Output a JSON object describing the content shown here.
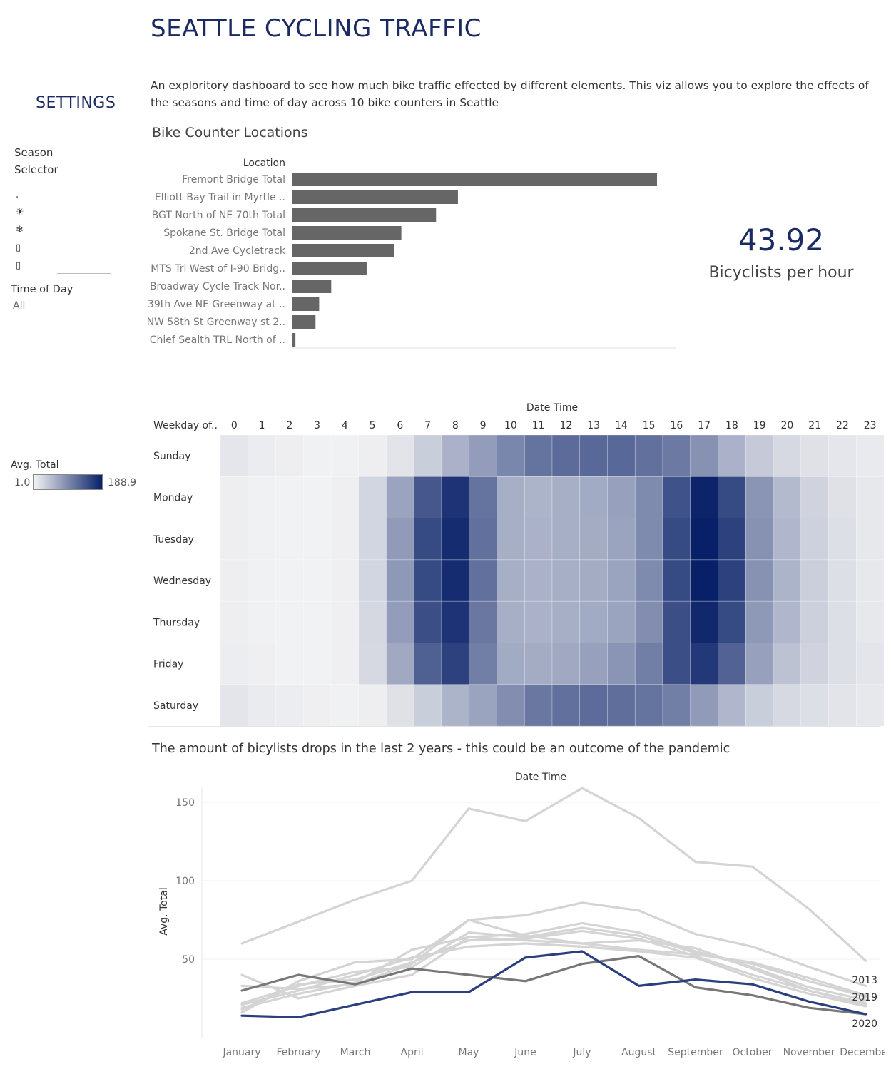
{
  "header": {
    "title": "SEATTLE CYCLING TRAFFIC",
    "subtitle": "An exploritory dashboard to see how much bike traffic effected by different elements. This viz allows you to explore the effects of the seasons and time of day across 10 bike counters in Seattle"
  },
  "settings": {
    "title": "SETTINGS",
    "season_label": "Season Selector",
    "season_options": [
      ".",
      "☀",
      "❄",
      "▯",
      "▯"
    ],
    "time_of_day_label": "Time of Day",
    "time_of_day_value": "All"
  },
  "kpi": {
    "value": "43.92",
    "label": "Bicyclists per hour"
  },
  "heatmap_legend": {
    "label": "Avg. Total",
    "min": "1.0",
    "max": "188.9",
    "color_low": "#f4f4f4",
    "color_high": "#082068"
  },
  "line_section_title": "The amount of bicylists drops in the last 2 years - this could be an outcome of the pandemic",
  "chart_data": [
    {
      "type": "bar",
      "title": "Bike Counter Locations",
      "ylabel": "Location",
      "categories": [
        "Fremont Bridge Total",
        "Elliott Bay Trail in Myrtle ..",
        "BGT North of NE 70th Total",
        "Spokane St. Bridge Total",
        "2nd Ave Cycletrack",
        "MTS Trl West of I-90 Bridg..",
        "Broadway Cycle Track Nor..",
        "39th Ave NE Greenway at ..",
        "NW 58th St Greenway st 2..",
        "Chief Sealth TRL North of .."
      ],
      "values": [
        100,
        45.5,
        39.5,
        30,
        28,
        20.5,
        10.8,
        7.5,
        6.5,
        1
      ],
      "color": "#666666"
    },
    {
      "type": "heatmap",
      "xlabel": "Date Time",
      "ylabel": "Weekday of..",
      "x": [
        "0",
        "1",
        "2",
        "3",
        "4",
        "5",
        "6",
        "7",
        "8",
        "9",
        "10",
        "11",
        "12",
        "13",
        "14",
        "15",
        "16",
        "17",
        "18",
        "19",
        "20",
        "21",
        "22",
        "23"
      ],
      "y": [
        "Sunday",
        "Monday",
        "Tuesday",
        "Wednesday",
        "Thursday",
        "Friday",
        "Saturday"
      ],
      "range": [
        1.0,
        188.9
      ],
      "values": [
        [
          13,
          8,
          6,
          4,
          4,
          6,
          15,
          35,
          60,
          78,
          98,
          115,
          122,
          125,
          125,
          118,
          110,
          88,
          60,
          38,
          25,
          18,
          13,
          10
        ],
        [
          6,
          4,
          3,
          3,
          5,
          28,
          72,
          140,
          172,
          115,
          62,
          58,
          62,
          66,
          75,
          95,
          145,
          185,
          152,
          85,
          52,
          30,
          18,
          12
        ],
        [
          6,
          4,
          3,
          3,
          5,
          28,
          80,
          152,
          178,
          118,
          62,
          60,
          62,
          65,
          72,
          95,
          152,
          189,
          160,
          88,
          55,
          32,
          20,
          12
        ],
        [
          6,
          4,
          3,
          3,
          5,
          28,
          82,
          152,
          178,
          118,
          62,
          60,
          62,
          65,
          72,
          95,
          152,
          189,
          160,
          88,
          58,
          34,
          20,
          12
        ],
        [
          6,
          4,
          3,
          3,
          5,
          26,
          78,
          148,
          172,
          112,
          62,
          60,
          62,
          66,
          72,
          92,
          148,
          182,
          152,
          82,
          55,
          33,
          20,
          12
        ],
        [
          7,
          5,
          3,
          3,
          5,
          25,
          68,
          132,
          160,
          105,
          66,
          65,
          68,
          75,
          85,
          105,
          148,
          168,
          130,
          75,
          45,
          30,
          20,
          14
        ],
        [
          14,
          9,
          7,
          5,
          4,
          6,
          18,
          35,
          58,
          72,
          92,
          112,
          118,
          122,
          120,
          115,
          105,
          80,
          55,
          35,
          25,
          20,
          15,
          12
        ]
      ]
    },
    {
      "type": "line",
      "xlabel": "Date Time",
      "ylabel": "Avg. Total",
      "x": [
        "January",
        "February",
        "March",
        "April",
        "May",
        "June",
        "July",
        "August",
        "September",
        "October",
        "November",
        "December"
      ],
      "ylim": [
        0,
        165
      ],
      "yticks": [
        50,
        100,
        150
      ],
      "series": [
        {
          "name": "2013",
          "color": "#d4d4d4",
          "values": [
            60,
            74,
            88,
            100,
            146,
            138,
            159,
            140,
            112,
            109,
            82,
            49
          ]
        },
        {
          "name": "",
          "color": "#d4d4d4",
          "values": [
            33,
            31,
            34,
            47,
            75,
            78,
            86,
            81,
            66,
            58,
            45,
            33
          ]
        },
        {
          "name": "",
          "color": "#d4d4d4",
          "values": [
            16,
            36,
            48,
            50,
            75,
            65,
            60,
            56,
            53,
            48,
            38,
            27
          ]
        },
        {
          "name": "",
          "color": "#d4d4d4",
          "values": [
            19,
            28,
            35,
            56,
            64,
            66,
            73,
            67,
            55,
            45,
            32,
            24
          ]
        },
        {
          "name": "",
          "color": "#d4d4d4",
          "values": [
            22,
            33,
            42,
            45,
            67,
            64,
            70,
            65,
            54,
            47,
            36,
            26
          ]
        },
        {
          "name": "",
          "color": "#d4d4d4",
          "values": [
            40,
            25,
            33,
            40,
            64,
            62,
            60,
            62,
            57,
            44,
            30,
            22
          ]
        },
        {
          "name": "",
          "color": "#d4d4d4",
          "values": [
            18,
            34,
            37,
            48,
            62,
            63,
            68,
            63,
            52,
            40,
            30,
            21
          ]
        },
        {
          "name": "",
          "color": "#d4d4d4",
          "values": [
            21,
            30,
            40,
            51,
            58,
            60,
            58,
            55,
            51,
            38,
            28,
            20
          ]
        },
        {
          "name": "2019",
          "color": "#777777",
          "values": [
            30,
            40,
            34,
            44,
            40,
            36,
            47,
            52,
            32,
            27,
            19,
            15
          ]
        },
        {
          "name": "2020",
          "color": "#2b3f7e",
          "values": [
            14,
            13,
            21,
            29,
            29,
            51,
            55,
            33,
            37,
            34,
            23,
            15
          ]
        }
      ]
    }
  ]
}
